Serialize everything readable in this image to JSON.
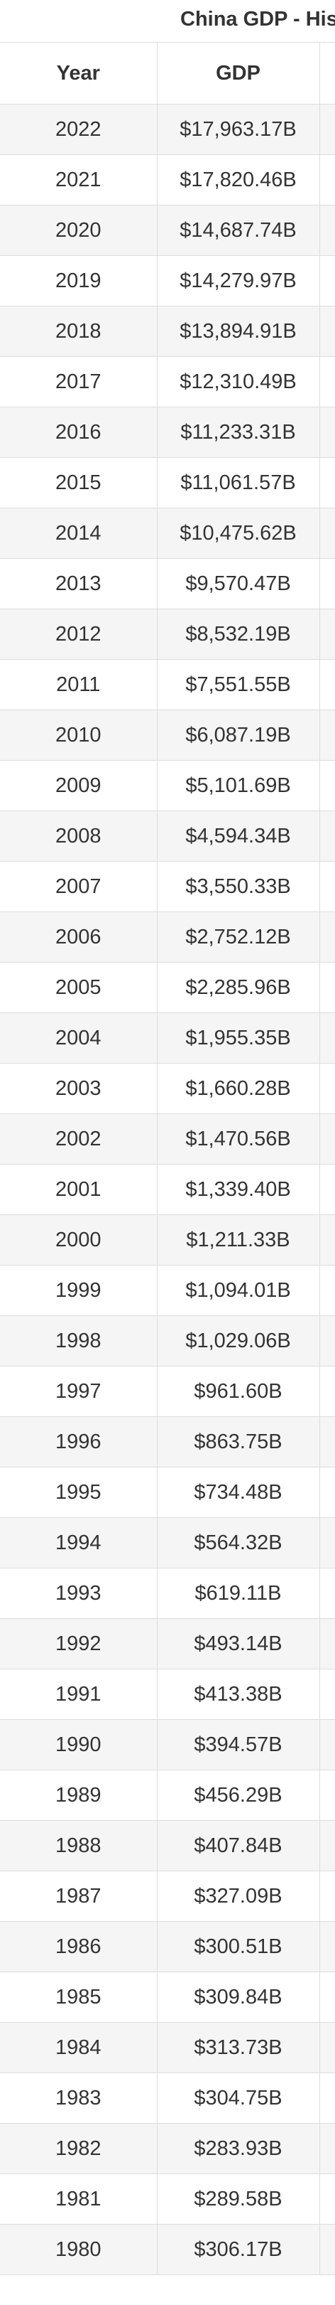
{
  "header": {
    "title": "China GDP - His"
  },
  "table": {
    "columns": [
      "Year",
      "GDP"
    ],
    "rows": [
      {
        "year": "2022",
        "gdp": "$17,963.17B"
      },
      {
        "year": "2021",
        "gdp": "$17,820.46B"
      },
      {
        "year": "2020",
        "gdp": "$14,687.74B"
      },
      {
        "year": "2019",
        "gdp": "$14,279.97B"
      },
      {
        "year": "2018",
        "gdp": "$13,894.91B"
      },
      {
        "year": "2017",
        "gdp": "$12,310.49B"
      },
      {
        "year": "2016",
        "gdp": "$11,233.31B"
      },
      {
        "year": "2015",
        "gdp": "$11,061.57B"
      },
      {
        "year": "2014",
        "gdp": "$10,475.62B"
      },
      {
        "year": "2013",
        "gdp": "$9,570.47B"
      },
      {
        "year": "2012",
        "gdp": "$8,532.19B"
      },
      {
        "year": "2011",
        "gdp": "$7,551.55B"
      },
      {
        "year": "2010",
        "gdp": "$6,087.19B"
      },
      {
        "year": "2009",
        "gdp": "$5,101.69B"
      },
      {
        "year": "2008",
        "gdp": "$4,594.34B"
      },
      {
        "year": "2007",
        "gdp": "$3,550.33B"
      },
      {
        "year": "2006",
        "gdp": "$2,752.12B"
      },
      {
        "year": "2005",
        "gdp": "$2,285.96B"
      },
      {
        "year": "2004",
        "gdp": "$1,955.35B"
      },
      {
        "year": "2003",
        "gdp": "$1,660.28B"
      },
      {
        "year": "2002",
        "gdp": "$1,470.56B"
      },
      {
        "year": "2001",
        "gdp": "$1,339.40B"
      },
      {
        "year": "2000",
        "gdp": "$1,211.33B"
      },
      {
        "year": "1999",
        "gdp": "$1,094.01B"
      },
      {
        "year": "1998",
        "gdp": "$1,029.06B"
      },
      {
        "year": "1997",
        "gdp": "$961.60B"
      },
      {
        "year": "1996",
        "gdp": "$863.75B"
      },
      {
        "year": "1995",
        "gdp": "$734.48B"
      },
      {
        "year": "1994",
        "gdp": "$564.32B"
      },
      {
        "year": "1993",
        "gdp": "$619.11B"
      },
      {
        "year": "1992",
        "gdp": "$493.14B"
      },
      {
        "year": "1991",
        "gdp": "$413.38B"
      },
      {
        "year": "1990",
        "gdp": "$394.57B"
      },
      {
        "year": "1989",
        "gdp": "$456.29B"
      },
      {
        "year": "1988",
        "gdp": "$407.84B"
      },
      {
        "year": "1987",
        "gdp": "$327.09B"
      },
      {
        "year": "1986",
        "gdp": "$300.51B"
      },
      {
        "year": "1985",
        "gdp": "$309.84B"
      },
      {
        "year": "1984",
        "gdp": "$313.73B"
      },
      {
        "year": "1983",
        "gdp": "$304.75B"
      },
      {
        "year": "1982",
        "gdp": "$283.93B"
      },
      {
        "year": "1981",
        "gdp": "$289.58B"
      },
      {
        "year": "1980",
        "gdp": "$306.17B"
      }
    ]
  }
}
